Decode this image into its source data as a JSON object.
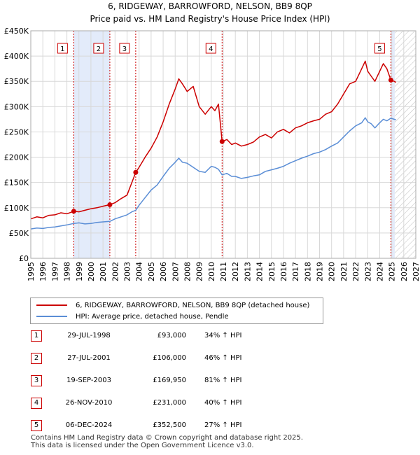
{
  "header": {
    "title_line1": "6, RIDGEWAY, BARROWFORD, NELSON, BB9 8QP",
    "title_line2": "Price paid vs. HM Land Registry's House Price Index (HPI)"
  },
  "colors": {
    "price_line": "#cc0000",
    "hpi_line": "#5b8ed6",
    "shade": "#e3ebfa",
    "grid": "#d8d8d8",
    "marker_box": "#cc0000"
  },
  "legend": {
    "price_label": "6, RIDGEWAY, BARROWFORD, NELSON, BB9 8QP (detached house)",
    "hpi_label": "HPI: Average price, detached house, Pendle"
  },
  "transactions": [
    {
      "num": "1",
      "date": "29-JUL-1998",
      "price": "£93,000",
      "hpi": "34% ↑ HPI"
    },
    {
      "num": "2",
      "date": "27-JUL-2001",
      "price": "£106,000",
      "hpi": "46% ↑ HPI"
    },
    {
      "num": "3",
      "date": "19-SEP-2003",
      "price": "£169,950",
      "hpi": "81% ↑ HPI"
    },
    {
      "num": "4",
      "date": "26-NOV-2010",
      "price": "£231,000",
      "hpi": "40% ↑ HPI"
    },
    {
      "num": "5",
      "date": "06-DEC-2024",
      "price": "£352,500",
      "hpi": "27% ↑ HPI"
    }
  ],
  "footer": {
    "line1": "Contains HM Land Registry data © Crown copyright and database right 2025.",
    "line2": "This data is licensed under the Open Government Licence v3.0."
  },
  "chart_data": {
    "type": "line",
    "title": "6, RIDGEWAY, BARROWFORD, NELSON, BB9 8QP",
    "subtitle": "Price paid vs. HM Land Registry's House Price Index (HPI)",
    "xlim": [
      1995,
      2027
    ],
    "ylim": [
      0,
      450000
    ],
    "y_ticks": [
      {
        "v": 0,
        "label": "£0"
      },
      {
        "v": 50000,
        "label": "£50K"
      },
      {
        "v": 100000,
        "label": "£100K"
      },
      {
        "v": 150000,
        "label": "£150K"
      },
      {
        "v": 200000,
        "label": "£200K"
      },
      {
        "v": 250000,
        "label": "£250K"
      },
      {
        "v": 300000,
        "label": "£300K"
      },
      {
        "v": 350000,
        "label": "£350K"
      },
      {
        "v": 400000,
        "label": "£400K"
      },
      {
        "v": 450000,
        "label": "£450K"
      }
    ],
    "x_ticks": [
      "1995",
      "1996",
      "1997",
      "1998",
      "1999",
      "2000",
      "2001",
      "2002",
      "2003",
      "2004",
      "2005",
      "2006",
      "2007",
      "2008",
      "2009",
      "2010",
      "2011",
      "2012",
      "2013",
      "2014",
      "2015",
      "2016",
      "2017",
      "2018",
      "2019",
      "2020",
      "2021",
      "2022",
      "2023",
      "2024",
      "2025",
      "2026",
      "2027"
    ],
    "shaded_periods": [
      [
        1998.57,
        2001.57
      ],
      [
        2024.93,
        2025.25
      ]
    ],
    "forecast_start": 2025.25,
    "sales": [
      {
        "label": "1",
        "x": 1998.57,
        "y": 93000
      },
      {
        "label": "2",
        "x": 2001.57,
        "y": 106000
      },
      {
        "label": "3",
        "x": 2003.72,
        "y": 169950
      },
      {
        "label": "4",
        "x": 2010.9,
        "y": 231000
      },
      {
        "label": "5",
        "x": 2024.93,
        "y": 352500
      }
    ],
    "series": [
      {
        "name": "6, RIDGEWAY, BARROWFORD, NELSON, BB9 8QP (detached house)",
        "x": [
          1995.0,
          1995.5,
          1996.0,
          1996.5,
          1997.0,
          1997.5,
          1998.0,
          1998.57,
          1999.0,
          1999.5,
          2000.0,
          2000.5,
          2001.0,
          2001.57,
          2002.0,
          2002.5,
          2003.0,
          2003.4,
          2003.72,
          2004.0,
          2004.5,
          2005.0,
          2005.5,
          2006.0,
          2006.5,
          2007.0,
          2007.3,
          2007.6,
          2008.0,
          2008.5,
          2009.0,
          2009.5,
          2010.0,
          2010.3,
          2010.6,
          2010.9,
          2011.3,
          2011.7,
          2012.0,
          2012.5,
          2013.0,
          2013.5,
          2014.0,
          2014.5,
          2015.0,
          2015.5,
          2016.0,
          2016.5,
          2017.0,
          2017.5,
          2018.0,
          2018.5,
          2019.0,
          2019.5,
          2020.0,
          2020.5,
          2021.0,
          2021.5,
          2022.0,
          2022.5,
          2022.8,
          2023.0,
          2023.3,
          2023.6,
          2024.0,
          2024.3,
          2024.6,
          2024.93,
          2025.2,
          2025.35
        ],
        "values": [
          78000,
          82000,
          80000,
          85000,
          86000,
          90000,
          88000,
          93000,
          92000,
          95000,
          98000,
          100000,
          103000,
          106000,
          110000,
          118000,
          125000,
          150000,
          169950,
          180000,
          200000,
          218000,
          240000,
          270000,
          305000,
          335000,
          355000,
          345000,
          330000,
          340000,
          300000,
          285000,
          300000,
          292000,
          305000,
          231000,
          235000,
          225000,
          228000,
          222000,
          225000,
          230000,
          240000,
          245000,
          238000,
          250000,
          255000,
          248000,
          258000,
          262000,
          268000,
          272000,
          275000,
          285000,
          290000,
          305000,
          325000,
          345000,
          350000,
          375000,
          390000,
          370000,
          360000,
          350000,
          370000,
          385000,
          375000,
          352500,
          350000,
          348000
        ]
      },
      {
        "name": "HPI: Average price, detached house, Pendle",
        "x": [
          1995.0,
          1995.5,
          1996.0,
          1996.5,
          1997.0,
          1997.5,
          1998.0,
          1998.57,
          1999.0,
          1999.5,
          2000.0,
          2000.5,
          2001.0,
          2001.57,
          2002.0,
          2002.5,
          2003.0,
          2003.4,
          2003.72,
          2004.0,
          2004.5,
          2005.0,
          2005.5,
          2006.0,
          2006.5,
          2007.0,
          2007.3,
          2007.6,
          2008.0,
          2008.5,
          2009.0,
          2009.5,
          2010.0,
          2010.3,
          2010.6,
          2010.9,
          2011.3,
          2011.7,
          2012.0,
          2012.5,
          2013.0,
          2013.5,
          2014.0,
          2014.5,
          2015.0,
          2015.5,
          2016.0,
          2016.5,
          2017.0,
          2017.5,
          2018.0,
          2018.5,
          2019.0,
          2019.5,
          2020.0,
          2020.5,
          2021.0,
          2021.5,
          2022.0,
          2022.5,
          2022.8,
          2023.0,
          2023.3,
          2023.6,
          2024.0,
          2024.3,
          2024.6,
          2024.93,
          2025.2,
          2025.35
        ],
        "values": [
          58000,
          60000,
          59000,
          61000,
          62000,
          64000,
          66000,
          69000,
          70000,
          68000,
          69000,
          71000,
          72000,
          73000,
          78000,
          82000,
          86000,
          92000,
          95000,
          105000,
          120000,
          135000,
          145000,
          162000,
          178000,
          190000,
          198000,
          190000,
          188000,
          180000,
          172000,
          170000,
          182000,
          180000,
          176000,
          165000,
          168000,
          162000,
          162000,
          158000,
          160000,
          163000,
          165000,
          172000,
          175000,
          178000,
          182000,
          188000,
          193000,
          198000,
          202000,
          207000,
          210000,
          215000,
          222000,
          228000,
          240000,
          252000,
          262000,
          268000,
          278000,
          270000,
          266000,
          258000,
          268000,
          275000,
          272000,
          277000,
          275000,
          274000
        ]
      }
    ]
  }
}
